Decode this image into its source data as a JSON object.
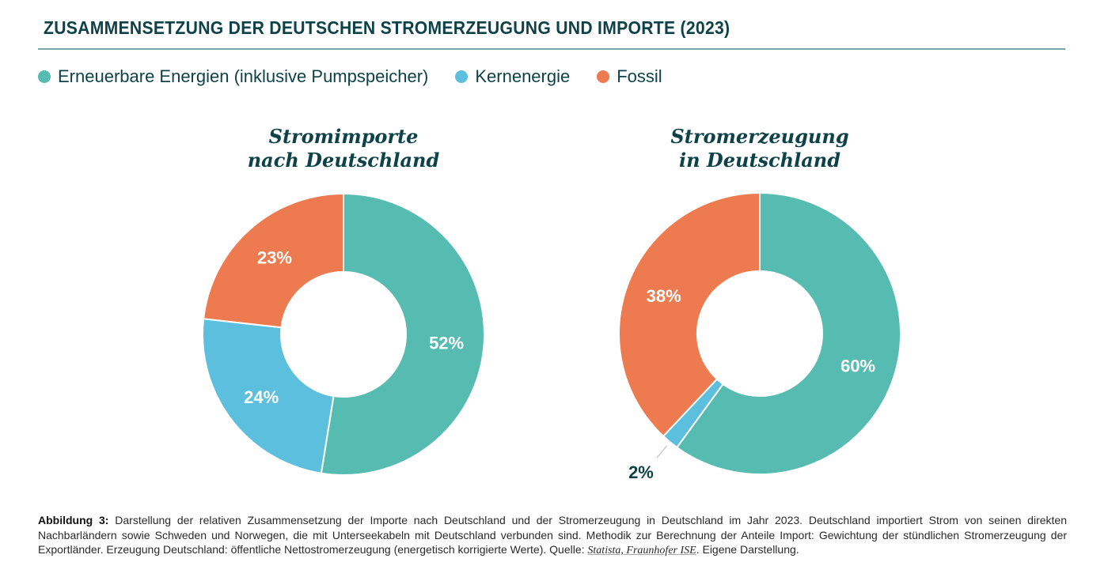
{
  "title": "ZUSAMMENSETZUNG DER DEUTSCHEN STROMERZEUGUNG UND IMPORTE (2023)",
  "legend": [
    {
      "label": "Erneuerbare Energien (inklusive Pumpspeicher)",
      "color": "#56bbb0"
    },
    {
      "label": "Kernenergie",
      "color": "#5bbfdd"
    },
    {
      "label": "Fossil",
      "color": "#ee7a50"
    }
  ],
  "chart_data": [
    {
      "type": "pie",
      "variant": "donut",
      "title": "Stromimporte nach Deutschland",
      "title_lines": [
        "Stromimporte",
        "nach Deutschland"
      ],
      "categories": [
        "Erneuerbare Energien (inklusive Pumpspeicher)",
        "Kernenergie",
        "Fossil"
      ],
      "values": [
        52,
        24,
        23
      ],
      "labels": [
        "52%",
        "24%",
        "23%"
      ],
      "colors": [
        "#56bbb0",
        "#5bbfdd",
        "#ee7a50"
      ],
      "start": "top, clockwise"
    },
    {
      "type": "pie",
      "variant": "donut",
      "title": "Stromerzeugung in Deutschland",
      "title_lines": [
        "Stromerzeugung",
        "in Deutschland"
      ],
      "categories": [
        "Erneuerbare Energien (inklusive Pumpspeicher)",
        "Kernenergie",
        "Fossil"
      ],
      "values": [
        60,
        2,
        38
      ],
      "labels": [
        "60%",
        "2%",
        "38%"
      ],
      "colors": [
        "#56bbb0",
        "#5bbfdd",
        "#ee7a50"
      ],
      "start": "top, clockwise"
    }
  ],
  "caption": {
    "label": "Abbildung 3:",
    "text": " Darstellung der relativen Zusammensetzung der Importe nach Deutschland und der Stromerzeugung in Deutschland im Jahr 2023. Deutschland importiert Strom von seinen direkten Nachbarländern sowie Schweden und Norwegen, die mit Unterseekabeln mit Deutschland verbunden sind. Methodik zur Berechnung der Anteile Import: Gewichtung der stündlichen Stromerzeugung der Exportländer. Erzeugung Deutschland: öffentliche Nettostromerzeugung (energetisch korrigierte Werte). Quelle: ",
    "source": "Statista, Fraunhofer ISE",
    "tail": ". Eigene Darstellung."
  }
}
